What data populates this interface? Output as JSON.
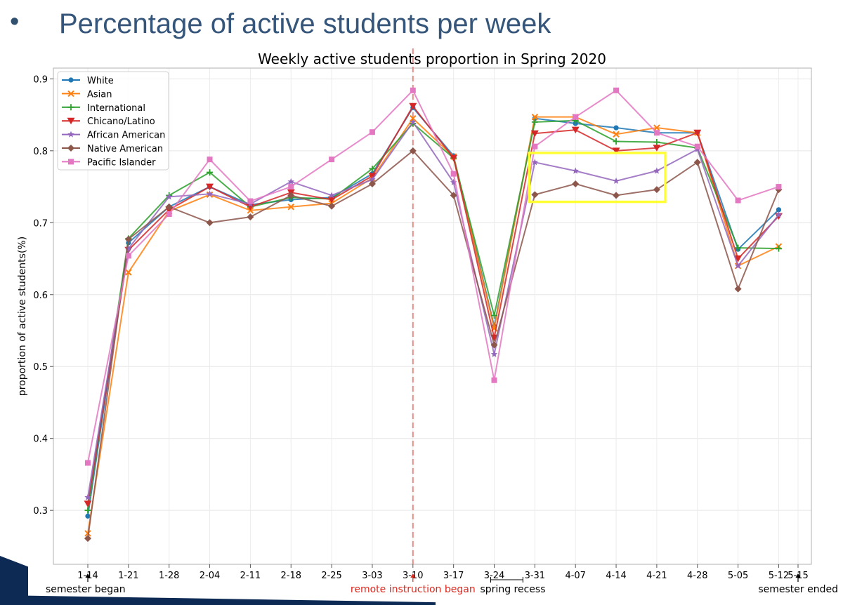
{
  "slide": {
    "bullet": "•",
    "title": "Percentage of active students per week"
  },
  "chart_data": {
    "type": "line",
    "title": "Weekly active students proportion in Spring 2020",
    "xlabel": "",
    "ylabel": "proportion of active students(%)",
    "ylim": [
      0.225,
      0.915
    ],
    "yticks": [
      0.3,
      0.4,
      0.5,
      0.6,
      0.7,
      0.8,
      0.9
    ],
    "x_ticks": [
      "1-14",
      "1-21",
      "1-28",
      "2-04",
      "2-11",
      "2-18",
      "2-25",
      "3-03",
      "3-10",
      "3-17",
      "3-24",
      "3-31",
      "4-07",
      "4-14",
      "4-21",
      "4-28",
      "5-05",
      "5-12",
      "5-15"
    ],
    "grid": true,
    "legend_position": "top-left",
    "series": [
      {
        "name": "White",
        "color": "#1f77b4",
        "marker": "circle",
        "values": [
          0.292,
          0.672,
          0.722,
          0.75,
          0.725,
          0.732,
          0.735,
          0.768,
          0.86,
          0.793,
          0.556,
          0.845,
          0.838,
          0.832,
          0.825,
          0.825,
          0.663,
          0.718
        ]
      },
      {
        "name": "Asian",
        "color": "#ff7f0e",
        "marker": "x",
        "values": [
          0.268,
          0.631,
          0.716,
          0.739,
          0.717,
          0.722,
          0.727,
          0.762,
          0.845,
          0.792,
          0.553,
          0.847,
          0.847,
          0.823,
          0.832,
          0.825,
          0.64,
          0.667
        ]
      },
      {
        "name": "International",
        "color": "#2ca02c",
        "marker": "plus",
        "values": [
          0.3,
          0.678,
          0.738,
          0.77,
          0.722,
          0.735,
          0.733,
          0.775,
          0.838,
          0.79,
          0.571,
          0.84,
          0.842,
          0.813,
          0.812,
          0.804,
          0.665,
          0.664
        ]
      },
      {
        "name": "Chicano/Latino",
        "color": "#d62728",
        "marker": "triangle-down",
        "values": [
          0.309,
          0.662,
          0.718,
          0.75,
          0.722,
          0.742,
          0.732,
          0.765,
          0.862,
          0.79,
          0.54,
          0.824,
          0.829,
          0.8,
          0.804,
          0.825,
          0.65,
          0.709
        ]
      },
      {
        "name": "African American",
        "color": "#9467bd",
        "marker": "star",
        "values": [
          0.318,
          0.664,
          0.736,
          0.74,
          0.726,
          0.757,
          0.738,
          0.76,
          0.84,
          0.756,
          0.517,
          0.784,
          0.772,
          0.758,
          0.772,
          0.802,
          0.64,
          0.711
        ]
      },
      {
        "name": "Native American",
        "color": "#8c564b",
        "marker": "diamond",
        "values": [
          0.261,
          0.677,
          0.722,
          0.7,
          0.708,
          0.738,
          0.723,
          0.754,
          0.8,
          0.738,
          0.53,
          0.739,
          0.754,
          0.738,
          0.746,
          0.784,
          0.608,
          0.746
        ]
      },
      {
        "name": "Pacific Islander",
        "color": "#e377c2",
        "marker": "square",
        "values": [
          0.366,
          0.654,
          0.712,
          0.788,
          0.73,
          0.75,
          0.788,
          0.826,
          0.884,
          0.768,
          0.481,
          0.806,
          0.847,
          0.884,
          0.825,
          0.806,
          0.731,
          0.75
        ]
      }
    ],
    "annotations": [
      {
        "text": "semester began",
        "at": "1-14",
        "color": "#000000"
      },
      {
        "text": "remote instruction began",
        "at": "3-10",
        "color": "#e0281e"
      },
      {
        "text": "spring recess",
        "from": "3-24",
        "to": "3-31",
        "color": "#000000"
      },
      {
        "text": "semester ended",
        "at": "5-15",
        "color": "#000000"
      }
    ],
    "remote_line_at": "3-10",
    "highlight_box": {
      "from": "3-31",
      "to": "4-21",
      "range": [
        0.729,
        0.797
      ],
      "color": "#ffff33"
    }
  }
}
